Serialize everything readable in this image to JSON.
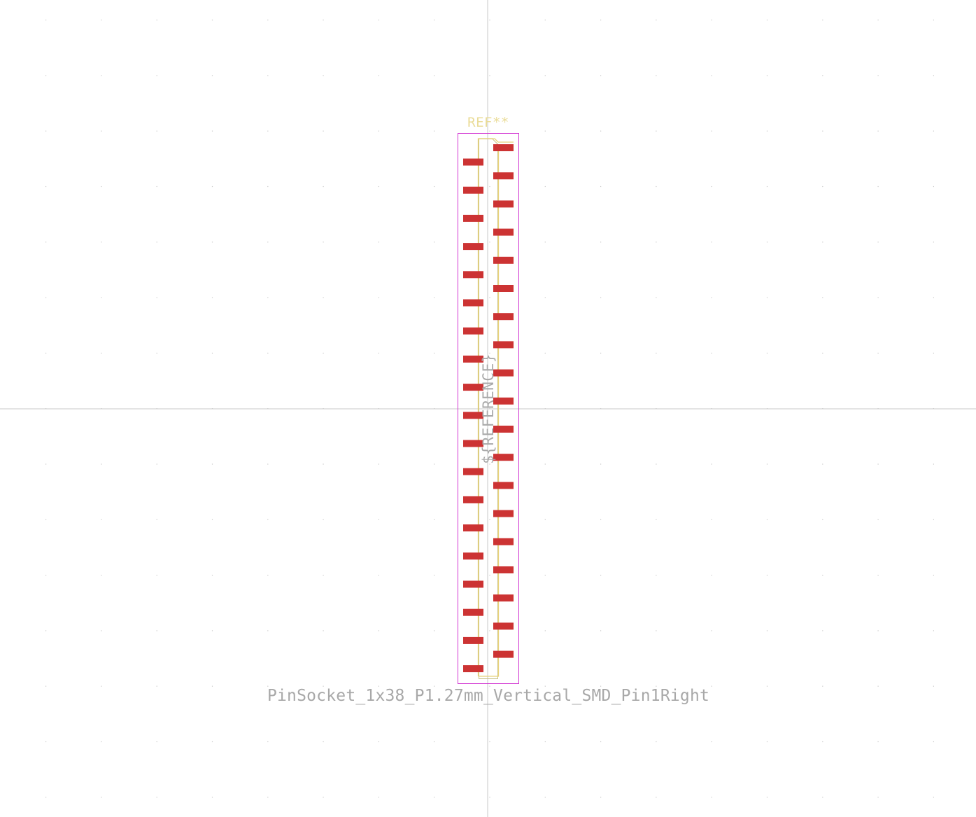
{
  "footprint": {
    "reference": "REF**",
    "value": "PinSocket_1x38_P1.27mm_Vertical_SMD_Pin1Right",
    "fab_reference": "${REFERENCE}",
    "pin_count": 38,
    "pins_right_column": 19,
    "pins_left_column": 19
  },
  "colors": {
    "background": "#ffffff",
    "grid": "#c8c8c8",
    "courtyard": "#d236d2",
    "silkscreen": "#e8d27a",
    "fabrication": "#c9c48a",
    "pad": "#cc3333",
    "reference_text": "#eadc98",
    "value_text": "#a8a8a8"
  }
}
